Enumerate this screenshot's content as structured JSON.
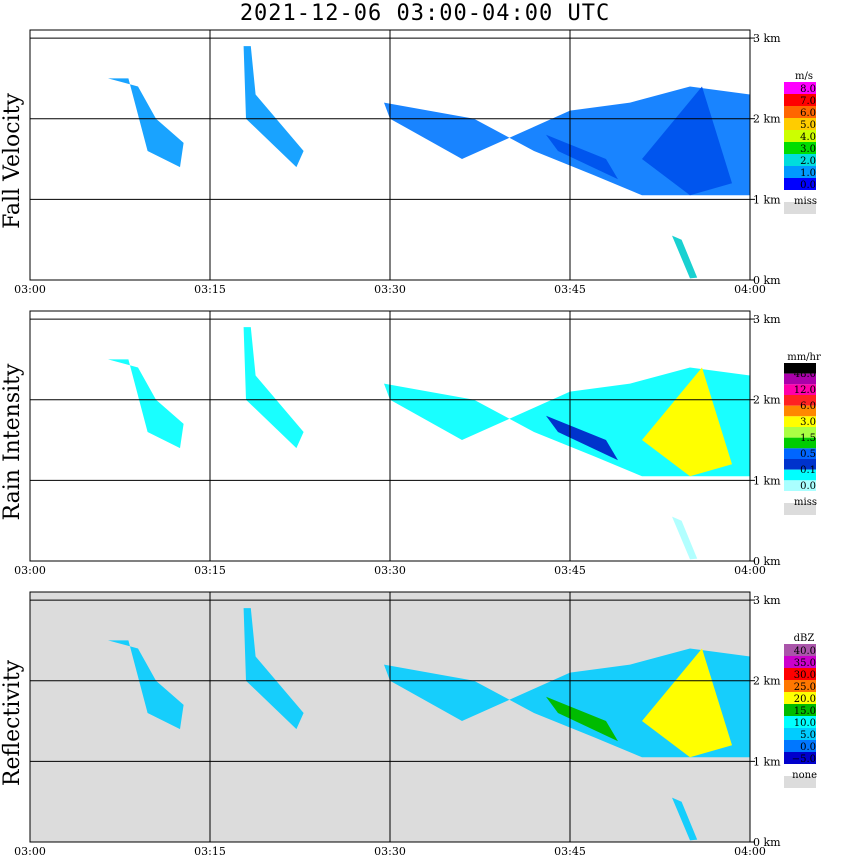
{
  "title": "2021-12-06   03:00-04:00 UTC",
  "chart_data": [
    {
      "type": "heatmap",
      "ylabel": "Fall Velocity",
      "x_ticks": [
        "03:00",
        "03:15",
        "03:30",
        "03:45",
        "04:00"
      ],
      "y_ticks": [
        "0 km",
        "1 km",
        "2 km",
        "3 km"
      ],
      "xlim": [
        "03:00",
        "04:00"
      ],
      "ylim": [
        0,
        3.1
      ],
      "grid": true,
      "legend": {
        "unit": "m/s",
        "labels": [
          "8.0",
          "7.0",
          "6.0",
          "5.0",
          "4.0",
          "3.0",
          "2.0",
          "1.0",
          "0.0"
        ],
        "colors": [
          "#ff00ff",
          "#ff0000",
          "#ff6600",
          "#ffcc00",
          "#ccff00",
          "#00dd00",
          "#00dddd",
          "#0099ff",
          "#0000ff"
        ],
        "missing_label": "miss",
        "missing_color": "#dcdcdc"
      }
    },
    {
      "type": "heatmap",
      "ylabel": "Rain Intensity",
      "x_ticks": [
        "03:00",
        "03:15",
        "03:30",
        "03:45",
        "04:00"
      ],
      "y_ticks": [
        "0 km",
        "1 km",
        "2 km",
        "3 km"
      ],
      "xlim": [
        "03:00",
        "04:00"
      ],
      "ylim": [
        0,
        3.1
      ],
      "grid": true,
      "legend": {
        "unit": "mm/hr",
        "labels": [
          "48.0",
          "12.0",
          "6.0",
          "3.0",
          "1.5",
          "0.5",
          "0.1",
          "0.0"
        ],
        "colors": [
          "#000000",
          "#aa00aa",
          "#ff00aa",
          "#ff2222",
          "#ff8800",
          "#ffff00",
          "#aaff44",
          "#00cc00",
          "#0066ff",
          "#0033cc",
          "#00ffff",
          "#aaffff"
        ],
        "missing_label": "miss",
        "missing_color": "#dcdcdc"
      }
    },
    {
      "type": "heatmap",
      "ylabel": "Reflectivity",
      "x_ticks": [
        "03:00",
        "03:15",
        "03:30",
        "03:45",
        "04:00"
      ],
      "y_ticks": [
        "0 km",
        "1 km",
        "2 km",
        "3 km"
      ],
      "xlim": [
        "03:00",
        "04:00"
      ],
      "ylim": [
        0,
        3.1
      ],
      "grid": true,
      "legend": {
        "unit": "dBZ",
        "labels": [
          "40.0",
          "35.0",
          "30.0",
          "25.0",
          "20.0",
          "15.0",
          "10.0",
          "5.0",
          "0.0",
          "−5.0"
        ],
        "colors": [
          "#aa55aa",
          "#cc00cc",
          "#ff0000",
          "#ff7700",
          "#ffff00",
          "#00bb00",
          "#00ffff",
          "#00ccff",
          "#0077ff",
          "#0000cc"
        ],
        "missing_label": "none",
        "missing_color": "#dcdcdc"
      }
    }
  ]
}
